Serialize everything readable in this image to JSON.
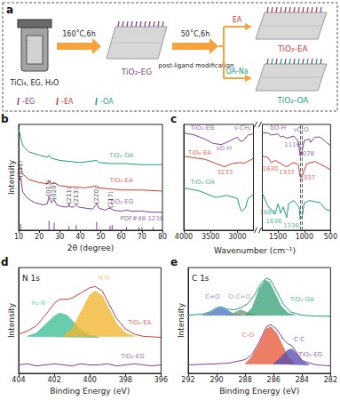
{
  "diagram": {
    "panel_label": "a",
    "reactants": "TiCl₄, EG, H₂O",
    "step1": "160˚C,6h",
    "intermediate": {
      "label": "TiO₂-EG",
      "color": "#7e3f98"
    },
    "step2": "50˚C,6h",
    "step2_note": "post-ligand modification",
    "branches": [
      {
        "reagent": "EA",
        "product": "TiO₂-EA",
        "color": "#d63a2f"
      },
      {
        "reagent": "OA-Na",
        "product": "TiO₂-OA",
        "color": "#1c9e7e"
      }
    ],
    "ligand_key": [
      {
        "label": "-EG",
        "color": "#7e3f98"
      },
      {
        "label": "-EA",
        "color": "#d63a2f"
      },
      {
        "label": "-OA",
        "color": "#1c9e7e"
      }
    ]
  },
  "chart_data": [
    {
      "panel_label": "b",
      "type": "line",
      "xlabel": "2θ (degree)",
      "ylabel": "Intensity",
      "xlim": [
        10,
        80
      ],
      "xticks": [
        10,
        20,
        30,
        40,
        50,
        60,
        70,
        80
      ],
      "ylim": [
        0,
        100
      ],
      "tick_labels": "x",
      "series": [
        {
          "name": "TiO₂-OA",
          "color": "#1c9e7e",
          "label_at": [
            60,
            71
          ],
          "x": [
            10,
            11,
            12,
            15,
            20,
            24,
            24.8,
            26,
            30,
            35,
            40,
            48,
            49,
            55,
            62,
            70,
            80
          ],
          "values": [
            96,
            88,
            80,
            74,
            71,
            69,
            71,
            68,
            66,
            65,
            64,
            66,
            64,
            63,
            63,
            62,
            62
          ]
        },
        {
          "name": "TiO₂-EA",
          "color": "#d63a2f",
          "label_at": [
            60,
            47
          ],
          "x": [
            10,
            11,
            12,
            15,
            20,
            24,
            24.8,
            26,
            27.3,
            30,
            35,
            38,
            42,
            48,
            49,
            55,
            60,
            70,
            80
          ],
          "values": [
            62,
            59,
            53,
            48,
            45,
            44,
            47,
            44,
            45,
            42,
            41,
            41,
            40,
            42,
            40,
            39,
            38,
            38,
            37
          ]
        },
        {
          "name": "TiO₂-EG",
          "color": "#7e3f98",
          "label_at": [
            60,
            27
          ],
          "x": [
            10,
            11,
            12,
            14,
            16,
            18,
            20,
            22,
            24,
            24.8,
            26,
            27.3,
            28.5,
            30,
            32,
            34,
            34.5,
            35,
            37,
            38,
            39,
            42,
            46,
            48,
            49,
            52,
            54.5,
            56,
            60,
            62.5,
            65,
            68.5,
            70,
            75,
            80
          ],
          "values": [
            45,
            50,
            36,
            31,
            28,
            26,
            25,
            24,
            25,
            32,
            26,
            29,
            24,
            23,
            22,
            22,
            25,
            22,
            22,
            24,
            22,
            21,
            20,
            25,
            21,
            19,
            21,
            19,
            18,
            19,
            18,
            18,
            18,
            17,
            17
          ]
        },
        {
          "name": "PDF#48-1238",
          "type": "stick",
          "color": "#7e3f98",
          "label_at": [
            70,
            11
          ],
          "x": [
            11,
            24.8,
            27.3,
            34.5,
            38,
            48,
            54.5,
            55.5,
            62.5,
            68.5,
            70,
            75.5
          ],
          "values": [
            6,
            9,
            7,
            4,
            5,
            8,
            4,
            5,
            3,
            3,
            3,
            3
          ]
        }
      ],
      "annotations": [
        {
          "text": "(011)",
          "x": 11,
          "y": 58
        },
        {
          "text": "(013)",
          "x": 24.8,
          "y": 40
        },
        {
          "text": "(020)",
          "x": 27.3,
          "y": 37
        },
        {
          "text": "(211)",
          "x": 34.5,
          "y": 33
        },
        {
          "text": "(213)",
          "x": 38,
          "y": 32
        },
        {
          "text": "(220)",
          "x": 48,
          "y": 33
        },
        {
          "text": "(217)",
          "x": 55,
          "y": 29
        }
      ]
    },
    {
      "panel_label": "c",
      "type": "line",
      "xlabel": "Wavenumber (cm⁻¹)",
      "segments": [
        {
          "xlim": [
            4000,
            2700
          ],
          "xticks": [
            4000,
            3500,
            3000
          ]
        },
        {
          "xlim": [
            1800,
            500
          ],
          "xticks": [
            1500,
            1000,
            500
          ]
        }
      ],
      "ylim": [
        0,
        100
      ],
      "tick_labels": "x",
      "series": [
        {
          "name": "TiO₂-EG",
          "color": "#7e3f98",
          "label_at": [
            3650,
            97
          ],
          "x": [
            4000,
            3800,
            3600,
            3450,
            3300,
            3200,
            3000,
            2940,
            2880,
            2800,
            2700,
            1800,
            1700,
            1630,
            1500,
            1450,
            1400,
            1337,
            1200,
            1116,
            1078,
            1037,
            1000,
            900,
            880,
            800,
            700,
            600,
            500
          ],
          "values": [
            92,
            90,
            86,
            82,
            81,
            83,
            88,
            84,
            85,
            90,
            91,
            92,
            92,
            90,
            91,
            88,
            89,
            87,
            89,
            84,
            70,
            76,
            85,
            86,
            83,
            88,
            88,
            84,
            80
          ]
        },
        {
          "name": "TiO₂-EA",
          "color": "#d63a2f",
          "label_at": [
            3700,
            73
          ],
          "x": [
            4000,
            3600,
            3400,
            3233,
            3100,
            2940,
            2880,
            2700,
            1800,
            1700,
            1630,
            1550,
            1450,
            1337,
            1200,
            1116,
            1078,
            1037,
            950,
            800,
            600,
            500
          ],
          "values": [
            70,
            67,
            63,
            60,
            63,
            64,
            63,
            68,
            70,
            69,
            64,
            66,
            63,
            60,
            64,
            62,
            50,
            52,
            63,
            65,
            60,
            57
          ]
        },
        {
          "name": "TiO₂-OA",
          "color": "#1c9e7e",
          "label_at": [
            3650,
            45
          ],
          "x": [
            4000,
            3700,
            3400,
            3200,
            3000,
            2950,
            2920,
            2850,
            2800,
            2700,
            1800,
            1687,
            1636,
            1560,
            1500,
            1450,
            1400,
            1336,
            1300,
            1200,
            1100,
            1078,
            1037,
            1000,
            900,
            800,
            700,
            600,
            500
          ],
          "values": [
            40,
            37,
            31,
            33,
            30,
            21,
            18,
            21,
            30,
            34,
            35,
            22,
            20,
            15,
            25,
            16,
            22,
            12,
            25,
            28,
            22,
            10,
            14,
            26,
            28,
            27,
            26,
            20,
            18
          ]
        }
      ],
      "annotations": [
        {
          "text": "νO-H",
          "x": 3250,
          "y": 77,
          "color": "#7e3f98"
        },
        {
          "text": "ν-CH₂",
          "x": 2900,
          "y": 97,
          "color": "#7e3f98"
        },
        {
          "text": "δO-H",
          "x": 1500,
          "y": 97,
          "color": "#7e3f98"
        },
        {
          "text": "νC-O",
          "x": 1060,
          "y": 95,
          "color": "#7e3f98"
        },
        {
          "text": "1116",
          "x": 1230,
          "y": 81,
          "color": "#7e3f98"
        },
        {
          "text": "1078",
          "x": 960,
          "y": 72,
          "color": "#7e3f98"
        },
        {
          "text": "3233",
          "x": 3233,
          "y": 55,
          "color": "#d63a2f"
        },
        {
          "text": "1630",
          "x": 1650,
          "y": 58,
          "color": "#d63a2f"
        },
        {
          "text": "1337",
          "x": 1337,
          "y": 55,
          "color": "#d63a2f"
        },
        {
          "text": "1037",
          "x": 940,
          "y": 50,
          "color": "#d63a2f"
        },
        {
          "text": "1687",
          "x": 1700,
          "y": 17,
          "color": "#1c9e7e"
        },
        {
          "text": "1636",
          "x": 1580,
          "y": 8,
          "color": "#1c9e7e"
        },
        {
          "text": "1336",
          "x": 1250,
          "y": 4,
          "color": "#1c9e7e"
        }
      ],
      "dashed_lines": [
        1078,
        1037
      ]
    },
    {
      "panel_label": "d",
      "type": "line",
      "title": "N 1s",
      "xlabel": "Binding Energy (eV)",
      "ylabel": "Intensity",
      "xlim": [
        404,
        396
      ],
      "xticks": [
        404,
        402,
        400,
        398,
        396
      ],
      "ylim": [
        0,
        100
      ],
      "tick_labels": "x",
      "series": [
        {
          "name": "H₂-N",
          "type": "area",
          "color": "#3cbf95",
          "label_at": [
            402.9,
            66
          ],
          "x": [
            403.5,
            403,
            402.5,
            402,
            401.7,
            401.3,
            401,
            400.5,
            400,
            399.5
          ],
          "values": [
            35,
            38,
            46,
            54,
            57,
            55,
            50,
            41,
            36,
            34
          ]
        },
        {
          "name": "N-Ti",
          "type": "area",
          "color": "#f2b530",
          "label_at": [
            399.2,
            90
          ],
          "x": [
            401.5,
            401,
            400.5,
            400,
            399.7,
            399.3,
            399,
            398.5,
            398,
            397.5
          ],
          "values": [
            35,
            42,
            58,
            74,
            78,
            73,
            63,
            47,
            38,
            35
          ]
        },
        {
          "name": "TiO₂-EA",
          "color": "#d63a2f",
          "label_at": [
            397.2,
            48
          ],
          "x": [
            404,
            403.5,
            403,
            402.5,
            402,
            401.7,
            401.3,
            401,
            400.5,
            400,
            399.7,
            399.3,
            399,
            398.5,
            398,
            397.5,
            397,
            396
          ],
          "values": [
            37,
            40,
            45,
            55,
            66,
            70,
            70,
            71,
            76,
            81,
            82,
            78,
            68,
            52,
            42,
            37,
            35,
            34
          ]
        },
        {
          "name": "TiO₂-EG",
          "color": "#7e3f98",
          "label_at": [
            397.6,
            16
          ],
          "x": [
            404,
            403.5,
            403,
            402.5,
            402,
            401.5,
            401,
            400.5,
            400,
            399.5,
            399,
            398.5,
            398,
            397.5,
            397,
            396.5,
            396
          ],
          "values": [
            8,
            9,
            7,
            8,
            9,
            8,
            7,
            9,
            8,
            8,
            9,
            7,
            8,
            9,
            8,
            7,
            8
          ]
        }
      ]
    },
    {
      "panel_label": "e",
      "type": "line",
      "title": "C 1s",
      "xlabel": "Binding Energy (eV)",
      "ylabel": "Intensity",
      "xlim": [
        292,
        282
      ],
      "xticks": [
        292,
        290,
        288,
        286,
        284,
        282
      ],
      "ylim": [
        0,
        100
      ],
      "tick_labels": "x",
      "series": [
        {
          "name": "C=O",
          "type": "area",
          "color": "#4d76c4",
          "label_at": [
            290.3,
            72
          ],
          "x": [
            291,
            290.5,
            290,
            289.7,
            289.3,
            288.8,
            288.3
          ],
          "values": [
            55,
            57,
            61,
            62,
            60,
            56,
            55
          ]
        },
        {
          "name": "O-C=O",
          "type": "area",
          "color": "#6f9a7a",
          "label_at": [
            288.4,
            72
          ],
          "x": [
            289.3,
            288.8,
            288.3,
            287.8,
            287.3
          ],
          "values": [
            55,
            57,
            60,
            57,
            55
          ]
        },
        {
          "type": "area",
          "color": "#3aa37a",
          "x": [
            288,
            287.5,
            287,
            286.6,
            286.3,
            286,
            285.5,
            285,
            284.5
          ],
          "values": [
            55,
            62,
            80,
            88,
            86,
            78,
            64,
            57,
            55
          ]
        },
        {
          "name": "TiO₂-OA",
          "color": "#1c9e7e",
          "label_at": [
            284,
            70
          ],
          "x": [
            292,
            291,
            290.5,
            290,
            289.7,
            289.3,
            288.8,
            288.3,
            287.8,
            287.3,
            286.9,
            286.5,
            286.2,
            285.8,
            285.3,
            284.8,
            284,
            283,
            282
          ],
          "values": [
            55,
            56,
            58,
            62,
            63,
            61,
            60,
            62,
            66,
            75,
            85,
            90,
            88,
            78,
            65,
            58,
            55,
            54,
            54
          ]
        },
        {
          "name": "C-O",
          "type": "area",
          "color": "#e55a3a",
          "label_at": [
            287.8,
            36
          ],
          "x": [
            288,
            287.5,
            287,
            286.5,
            286.2,
            285.8,
            285.3,
            285,
            284.5
          ],
          "values": [
            9,
            16,
            28,
            42,
            44,
            38,
            24,
            16,
            9
          ]
        },
        {
          "name": "C-C",
          "type": "area",
          "color": "#5a4fb0",
          "label_at": [
            284.2,
            32
          ],
          "x": [
            286,
            285.5,
            285,
            284.7,
            284.4,
            284,
            283.5
          ],
          "values": [
            9,
            15,
            22,
            23,
            19,
            12,
            8
          ]
        },
        {
          "name": "TiO₂-EG",
          "color": "#7e3f98",
          "label_at": [
            283.4,
            18
          ],
          "x": [
            292,
            290,
            289,
            288,
            287.5,
            287,
            286.5,
            286.2,
            285.8,
            285.3,
            285,
            284.7,
            284.3,
            284,
            283,
            282
          ],
          "values": [
            8,
            9,
            10,
            13,
            18,
            30,
            44,
            46,
            42,
            32,
            28,
            26,
            18,
            12,
            8,
            7
          ]
        }
      ]
    }
  ]
}
